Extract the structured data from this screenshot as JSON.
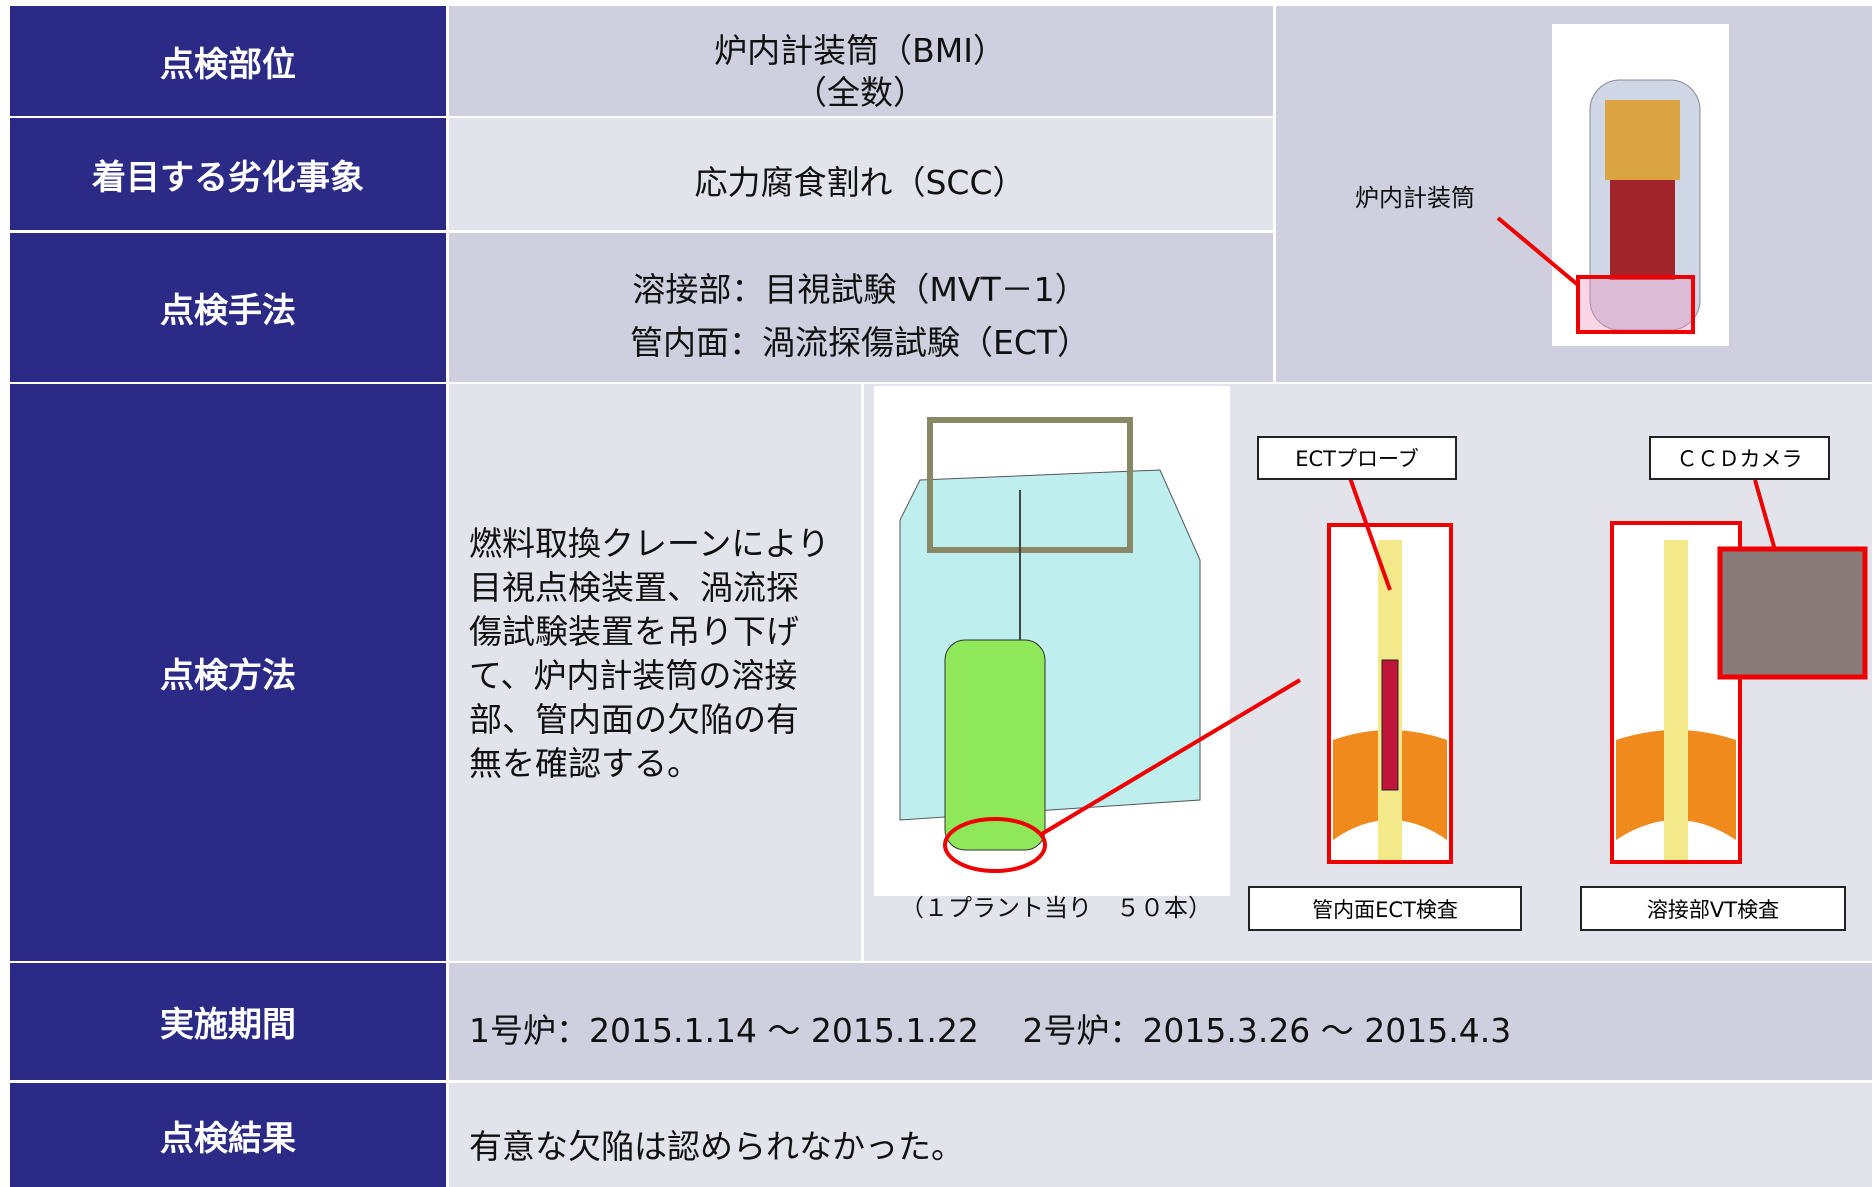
{
  "table": {
    "rows": [
      {
        "label": "点検部位",
        "content": [
          "炉内計装筒（BMI）",
          "（全数）"
        ]
      },
      {
        "label": "着目する劣化事象",
        "content": [
          "応力腐食割れ（SCC）"
        ]
      },
      {
        "label": "点検手法",
        "content": [
          "溶接部：目視試験（MVT－1）",
          "管内面：渦流探傷試験（ECT）"
        ]
      },
      {
        "label": "点検方法",
        "content": [
          "燃料取換クレーンにより",
          "目視点検装置、渦流探",
          "傷試験装置を吊り下げ",
          "て、炉内計装筒の溶接",
          "部、管内面の欠陥の有",
          "無を確認する。"
        ]
      },
      {
        "label": "実施期間",
        "content": [
          "1号炉：2015.1.14 ～ 2015.1.22　 2号炉：2015.3.26 ～ 2015.4.3"
        ]
      },
      {
        "label": "点検結果",
        "content": [
          "有意な欠陥は認められなかった。"
        ]
      }
    ]
  },
  "figures": {
    "reactor_label": "炉内計装筒",
    "plant_caption": "（１プラント当り　５０本）",
    "ect_probe": "ECTプローブ",
    "ccd_camera": "ＣＣＤカメラ",
    "ect_inspection": "管内面ECT検査",
    "vt_inspection": "溶接部VT検査"
  }
}
